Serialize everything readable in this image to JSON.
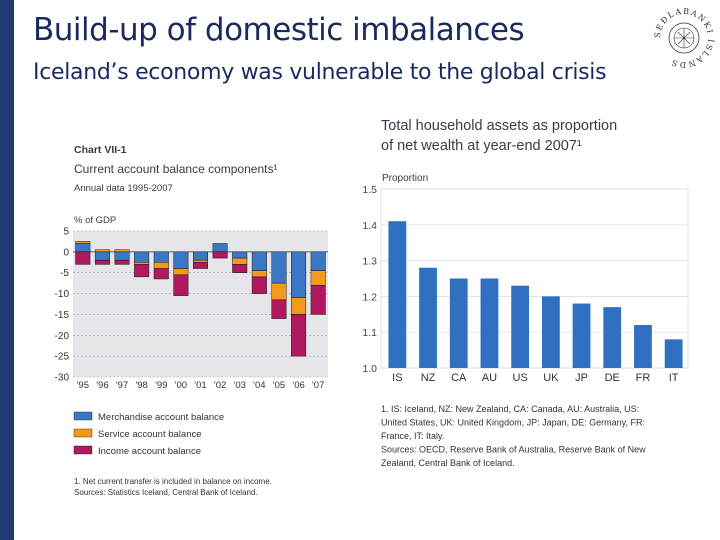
{
  "slide": {
    "title": "Build-up of domestic imbalances",
    "subtitle": "Iceland’s economy was vulnerable to the global crisis",
    "seal_text": "SEÐLABANKI ÍSLANDS"
  },
  "colors": {
    "sidebar": "#1f3a73",
    "title": "#1a2a5e",
    "heading": "#3a3a4a",
    "merchandise": "#3b78c3",
    "service": "#f39a1d",
    "income": "#b0185f",
    "panel_bg": "#e6e6ea",
    "bar_blue": "#2f70c0"
  },
  "chart_data": [
    {
      "type": "bar",
      "stacked": true,
      "chart_label": "Chart VII-1",
      "title": "Current account balance components¹",
      "subtitle": "Annual data 1995-2007",
      "ylabel": "% of GDP",
      "ylim": [
        -30,
        5
      ],
      "yticks": [
        "5",
        "0",
        "-5",
        "-10",
        "-15",
        "-20",
        "-25",
        "-30"
      ],
      "ytick_values": [
        5,
        0,
        -5,
        -10,
        -15,
        -20,
        -25,
        -30
      ],
      "categories": [
        "'95",
        "'96",
        "'97",
        "'98",
        "'99",
        "'00",
        "'01",
        "'02",
        "'03",
        "'04",
        "'05",
        "'06",
        "'07"
      ],
      "series": [
        {
          "name": "Merchandise account balance",
          "values": [
            2.0,
            -2.0,
            -2.0,
            -2.5,
            -2.5,
            -4.0,
            -2.0,
            2.0,
            -1.5,
            -4.5,
            -7.5,
            -11.0,
            -4.5
          ]
        },
        {
          "name": "Service account balance",
          "values": [
            0.5,
            0.5,
            0.5,
            -0.5,
            -1.5,
            -1.5,
            -0.5,
            0.0,
            -1.5,
            -1.5,
            -4.0,
            -4.0,
            -3.5
          ]
        },
        {
          "name": "Income account balance",
          "values": [
            -3.0,
            -1.0,
            -1.0,
            -3.0,
            -2.5,
            -5.0,
            -1.5,
            -1.5,
            -2.0,
            -4.0,
            -4.5,
            -10.0,
            -7.0
          ]
        }
      ],
      "grid": true,
      "legend": "bottom",
      "footnote": "1. Net current transfer is included in balance on income.",
      "sources": "Sources: Statistics Iceland, Central Bank of Iceland."
    },
    {
      "type": "bar",
      "title": "Total household assets as proportion of net wealth at year-end 2007¹",
      "title_lines": [
        "Total household assets as proportion",
        "of net wealth at year-end 2007¹"
      ],
      "ylabel": "Proportion",
      "ylim": [
        1.0,
        1.5
      ],
      "yticks": [
        "1.5",
        "1.4",
        "1.3",
        "1.2",
        "1.1",
        "1.0"
      ],
      "ytick_values": [
        1.5,
        1.4,
        1.3,
        1.2,
        1.1,
        1.0
      ],
      "categories": [
        "IS",
        "NZ",
        "CA",
        "AU",
        "US",
        "UK",
        "JP",
        "DE",
        "FR",
        "IT"
      ],
      "values": [
        1.41,
        1.28,
        1.25,
        1.25,
        1.23,
        1.2,
        1.18,
        1.17,
        1.12,
        1.08
      ],
      "grid": true,
      "footnote_lines": [
        "1. IS: Iceland, NZ: New Zealand, CA: Canada, AU: Australia, US:",
        "United States, UK: United Kingdom, JP: Japan, DE: Germany, FR:",
        "France, IT: Italy.",
        "Sources: OECD, Reserve Bank of Australia, Reserve Bank of New",
        "Zealand, Central Bank of Iceland."
      ]
    }
  ]
}
